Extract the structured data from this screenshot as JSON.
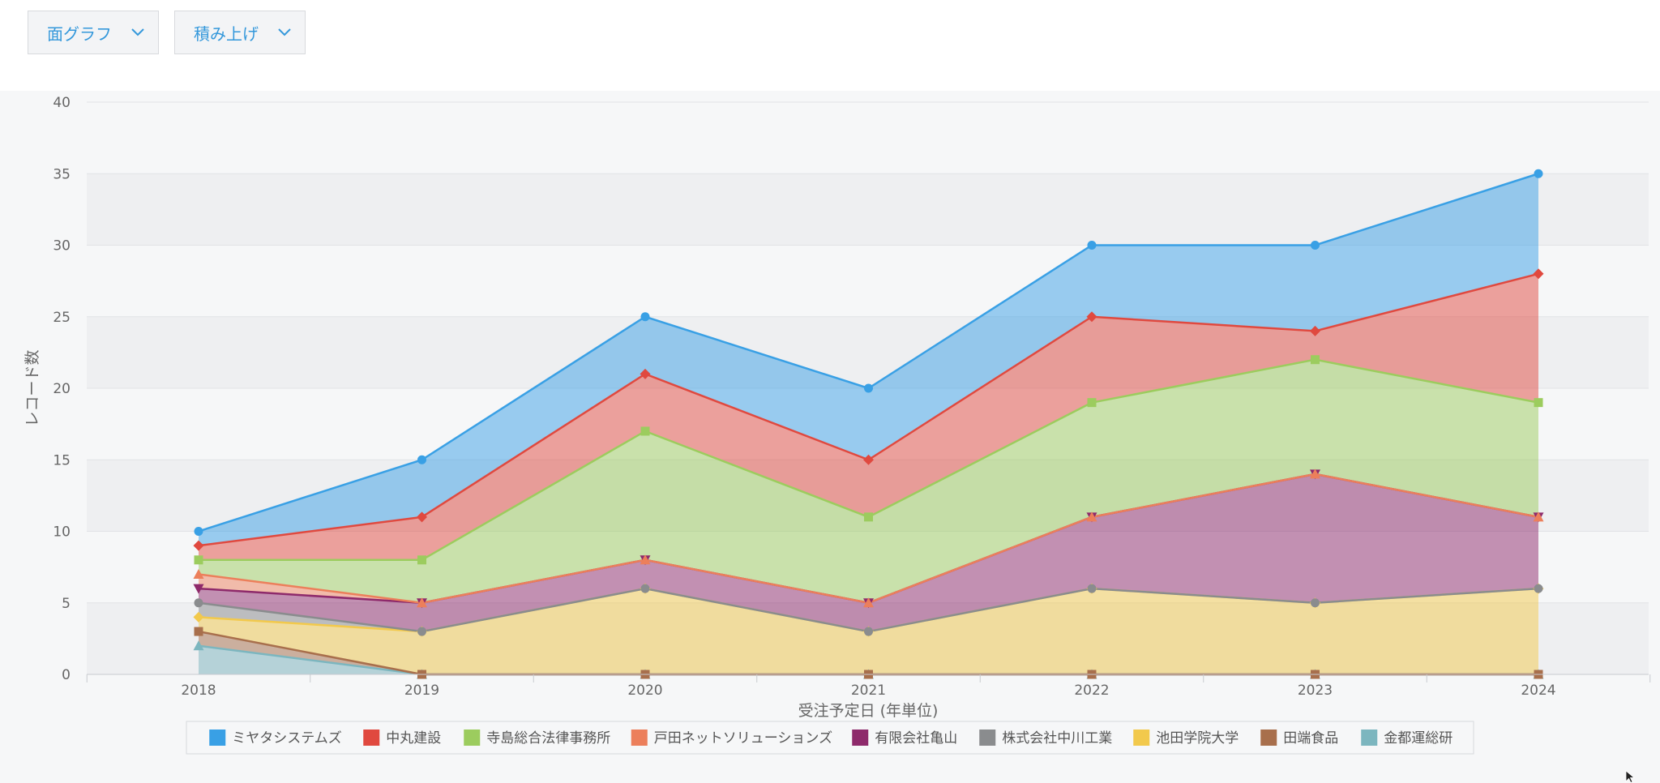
{
  "toolbar": {
    "chart_type_label": "面グラフ",
    "stack_label": "積み上げ"
  },
  "colors": {
    "accent": "#3498db",
    "gridband": "#eeeff1"
  },
  "chart_data": {
    "type": "area",
    "stacked": true,
    "xlabel": "受注予定日 (年単位)",
    "ylabel": "レコード数",
    "ylim": [
      0,
      40
    ],
    "yticks": [
      0,
      5,
      10,
      15,
      20,
      25,
      30,
      35,
      40
    ],
    "x": [
      "2018",
      "2019",
      "2020",
      "2021",
      "2022",
      "2023",
      "2024"
    ],
    "series": [
      {
        "name": "金都運総研",
        "color": "#7cb6bf",
        "marker": "triangle",
        "values": [
          2,
          0,
          0,
          0,
          0,
          0,
          0
        ]
      },
      {
        "name": "田端食品",
        "color": "#a86f4c",
        "marker": "square",
        "values": [
          1,
          0,
          0,
          0,
          0,
          0,
          0
        ]
      },
      {
        "name": "池田学院大学",
        "color": "#f2c94c",
        "marker": "diamond",
        "values": [
          1,
          3,
          6,
          3,
          6,
          5,
          6
        ]
      },
      {
        "name": "株式会社中川工業",
        "color": "#8a8c8e",
        "marker": "circle",
        "values": [
          1,
          0,
          0,
          0,
          0,
          0,
          0
        ]
      },
      {
        "name": "有限会社亀山",
        "color": "#8e2a6b",
        "marker": "triangle-down",
        "values": [
          1,
          2,
          2,
          2,
          5,
          9,
          5
        ]
      },
      {
        "name": "戸田ネットソリューションズ",
        "color": "#ec7f5b",
        "marker": "triangle",
        "values": [
          1,
          0,
          0,
          0,
          0,
          0,
          0
        ]
      },
      {
        "name": "寺島総合法律事務所",
        "color": "#9ccc5e",
        "marker": "square",
        "values": [
          1,
          3,
          9,
          6,
          8,
          8,
          8
        ]
      },
      {
        "name": "中丸建設",
        "color": "#e0493f",
        "marker": "diamond",
        "values": [
          1,
          3,
          4,
          4,
          6,
          2,
          9
        ]
      },
      {
        "name": "ミヤタシステムズ",
        "color": "#39a0e5",
        "marker": "circle",
        "values": [
          1,
          4,
          4,
          5,
          5,
          6,
          7
        ]
      }
    ],
    "legend": {
      "position": "bottom",
      "order": [
        "ミヤタシステムズ",
        "中丸建設",
        "寺島総合法律事務所",
        "戸田ネットソリューションズ",
        "有限会社亀山",
        "株式会社中川工業",
        "池田学院大学",
        "田端食品",
        "金都運総研"
      ]
    },
    "grid": true
  }
}
